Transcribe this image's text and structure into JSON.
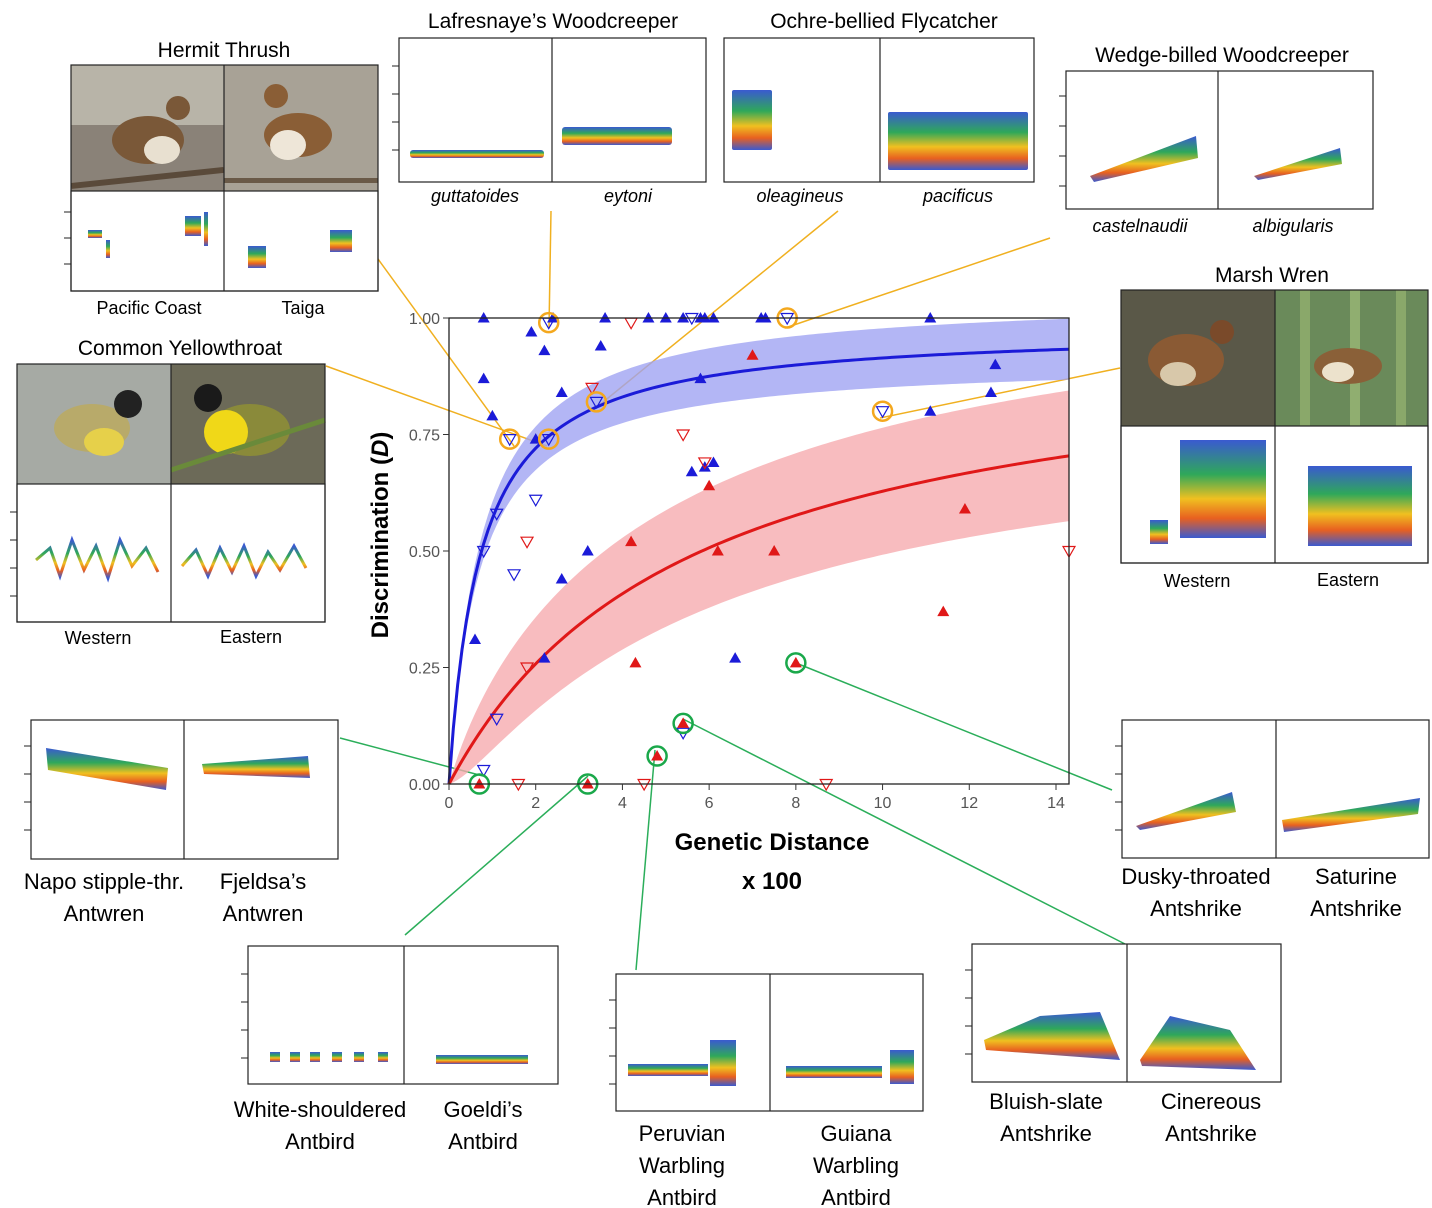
{
  "colors": {
    "near": "#1b1bd8",
    "far": "#e01818",
    "near_band": "#9da2f2",
    "far_band": "#f6a9ad",
    "highlight_orange": "#f4a81e",
    "highlight_green": "#1aa84a",
    "orange_line": "#f0b020",
    "green_line": "#2bae5a"
  },
  "chart_data": {
    "type": "scatter",
    "title": "",
    "xlabel_line1": "Genetic Distance",
    "xlabel_line2": "x 100",
    "ylabel_main": "Discrimination (",
    "ylabel_italic": "D",
    "ylabel_end": ")",
    "xlim": [
      0,
      14.3
    ],
    "ylim": [
      0,
      1.0
    ],
    "x_ticks": [
      "0",
      "2",
      "4",
      "6",
      "8",
      "10",
      "12",
      "14"
    ],
    "y_ticks": [
      "0.00",
      "0.25",
      "0.50",
      "0.75",
      "1.00"
    ],
    "grid": false,
    "series": [
      {
        "marker": "filled-up",
        "color_key": "near",
        "points": [
          [
            0.8,
            1.0
          ],
          [
            0.8,
            0.87
          ],
          [
            1.0,
            0.79
          ],
          [
            1.9,
            0.97
          ],
          [
            2.2,
            0.93
          ],
          [
            2.4,
            1.0
          ],
          [
            2.6,
            0.84
          ],
          [
            3.5,
            0.94
          ],
          [
            3.6,
            1.0
          ],
          [
            4.6,
            1.0
          ],
          [
            5.0,
            1.0
          ],
          [
            5.4,
            1.0
          ],
          [
            5.8,
            1.0
          ],
          [
            5.8,
            0.87
          ],
          [
            5.9,
            1.0
          ],
          [
            6.1,
            1.0
          ],
          [
            7.2,
            1.0
          ],
          [
            7.3,
            1.0
          ],
          [
            11.1,
            1.0
          ],
          [
            11.1,
            0.8
          ],
          [
            12.5,
            0.84
          ],
          [
            12.6,
            0.9
          ],
          [
            2.0,
            0.74
          ],
          [
            5.6,
            0.67
          ],
          [
            5.9,
            0.68
          ],
          [
            6.1,
            0.69
          ],
          [
            3.2,
            0.5
          ],
          [
            2.6,
            0.44
          ],
          [
            2.2,
            0.27
          ],
          [
            0.6,
            0.31
          ],
          [
            6.6,
            0.27
          ]
        ]
      },
      {
        "marker": "open-down",
        "color_key": "near",
        "points": [
          [
            1.1,
            0.58
          ],
          [
            1.5,
            0.45
          ],
          [
            0.8,
            0.5
          ],
          [
            2.0,
            0.61
          ],
          [
            1.1,
            0.14
          ],
          [
            0.8,
            0.03
          ],
          [
            5.4,
            0.11
          ],
          [
            1.4,
            0.74
          ],
          [
            2.3,
            0.74
          ],
          [
            2.3,
            0.99
          ],
          [
            3.4,
            0.82
          ],
          [
            5.6,
            1.0
          ],
          [
            7.8,
            1.0
          ],
          [
            10.0,
            0.8
          ]
        ]
      },
      {
        "marker": "filled-up",
        "color_key": "far",
        "points": [
          [
            7.0,
            0.92
          ],
          [
            6.0,
            0.64
          ],
          [
            6.2,
            0.5
          ],
          [
            7.5,
            0.5
          ],
          [
            4.2,
            0.52
          ],
          [
            4.3,
            0.26
          ],
          [
            11.9,
            0.59
          ],
          [
            11.4,
            0.37
          ],
          [
            0.7,
            0.0
          ],
          [
            3.2,
            0.0
          ],
          [
            4.8,
            0.06
          ],
          [
            5.4,
            0.13
          ],
          [
            8.0,
            0.26
          ]
        ]
      },
      {
        "marker": "open-down",
        "color_key": "far",
        "points": [
          [
            1.8,
            0.52
          ],
          [
            1.8,
            0.25
          ],
          [
            5.4,
            0.75
          ],
          [
            5.9,
            0.69
          ],
          [
            3.3,
            0.85
          ],
          [
            4.2,
            0.99
          ],
          [
            1.6,
            0.0
          ],
          [
            4.5,
            0.0
          ],
          [
            8.7,
            0.0
          ],
          [
            14.3,
            0.5
          ]
        ]
      }
    ],
    "fits": [
      {
        "color_key": "near",
        "band_key": "near_band",
        "a": 0.98,
        "b": 0.72,
        "band": 0.07
      },
      {
        "color_key": "far",
        "band_key": "far_band",
        "a": 0.98,
        "b": 5.6,
        "band": 0.15
      }
    ],
    "highlights": [
      {
        "color_key": "highlight_orange",
        "x": 1.4,
        "y": 0.74
      },
      {
        "color_key": "highlight_orange",
        "x": 2.3,
        "y": 0.74
      },
      {
        "color_key": "highlight_orange",
        "x": 2.3,
        "y": 0.99
      },
      {
        "color_key": "highlight_orange",
        "x": 3.4,
        "y": 0.82
      },
      {
        "color_key": "highlight_orange",
        "x": 7.8,
        "y": 1.0
      },
      {
        "color_key": "highlight_orange",
        "x": 10.0,
        "y": 0.8
      },
      {
        "color_key": "highlight_green",
        "x": 0.7,
        "y": 0.0
      },
      {
        "color_key": "highlight_green",
        "x": 3.2,
        "y": 0.0
      },
      {
        "color_key": "highlight_green",
        "x": 4.8,
        "y": 0.06
      },
      {
        "color_key": "highlight_green",
        "x": 5.4,
        "y": 0.13
      },
      {
        "color_key": "highlight_green",
        "x": 8.0,
        "y": 0.26
      }
    ]
  },
  "panels": {
    "hermit_thrush": {
      "title": "Hermit Thrush",
      "left": "Pacific Coast",
      "right": "Taiga"
    },
    "lafresnaye": {
      "title": "Lafresnaye’s Woodcreeper",
      "left": "guttatoides",
      "right": "eytoni"
    },
    "ochre": {
      "title": "Ochre-bellied Flycatcher",
      "left": "oleagineus",
      "right": "pacificus"
    },
    "wedge": {
      "title": "Wedge-billed Woodcreeper",
      "left": "castelnaudii",
      "right": "albigularis"
    },
    "yellowthroat": {
      "title": "Common Yellowthroat",
      "left": "Western",
      "right": "Eastern"
    },
    "marsh_wren": {
      "title": "Marsh Wren",
      "left": "Western",
      "right": "Eastern"
    },
    "stipplethroat": {
      "left1": "Napo stipple-thr.",
      "left2": "Antwren",
      "right1": "Fjeldsa’s",
      "right2": "Antwren"
    },
    "white_shouldered": {
      "left1": "White-shouldered",
      "left2": "Antbird",
      "right1": "Goeldi’s",
      "right2": "Antbird"
    },
    "warbling": {
      "left1": "Peruvian",
      "left2": "Warbling",
      "left3": "Antbird",
      "right1": "Guiana",
      "right2": "Warbling",
      "right3": "Antbird"
    },
    "bluish": {
      "left1": "Bluish-slate",
      "left2": "Antshrike",
      "right1": "Cinereous",
      "right2": "Antshrike"
    },
    "dusky": {
      "left1": "Dusky-throated",
      "left2": "Antshrike",
      "right1": "Saturine",
      "right2": "Antshrike"
    }
  }
}
